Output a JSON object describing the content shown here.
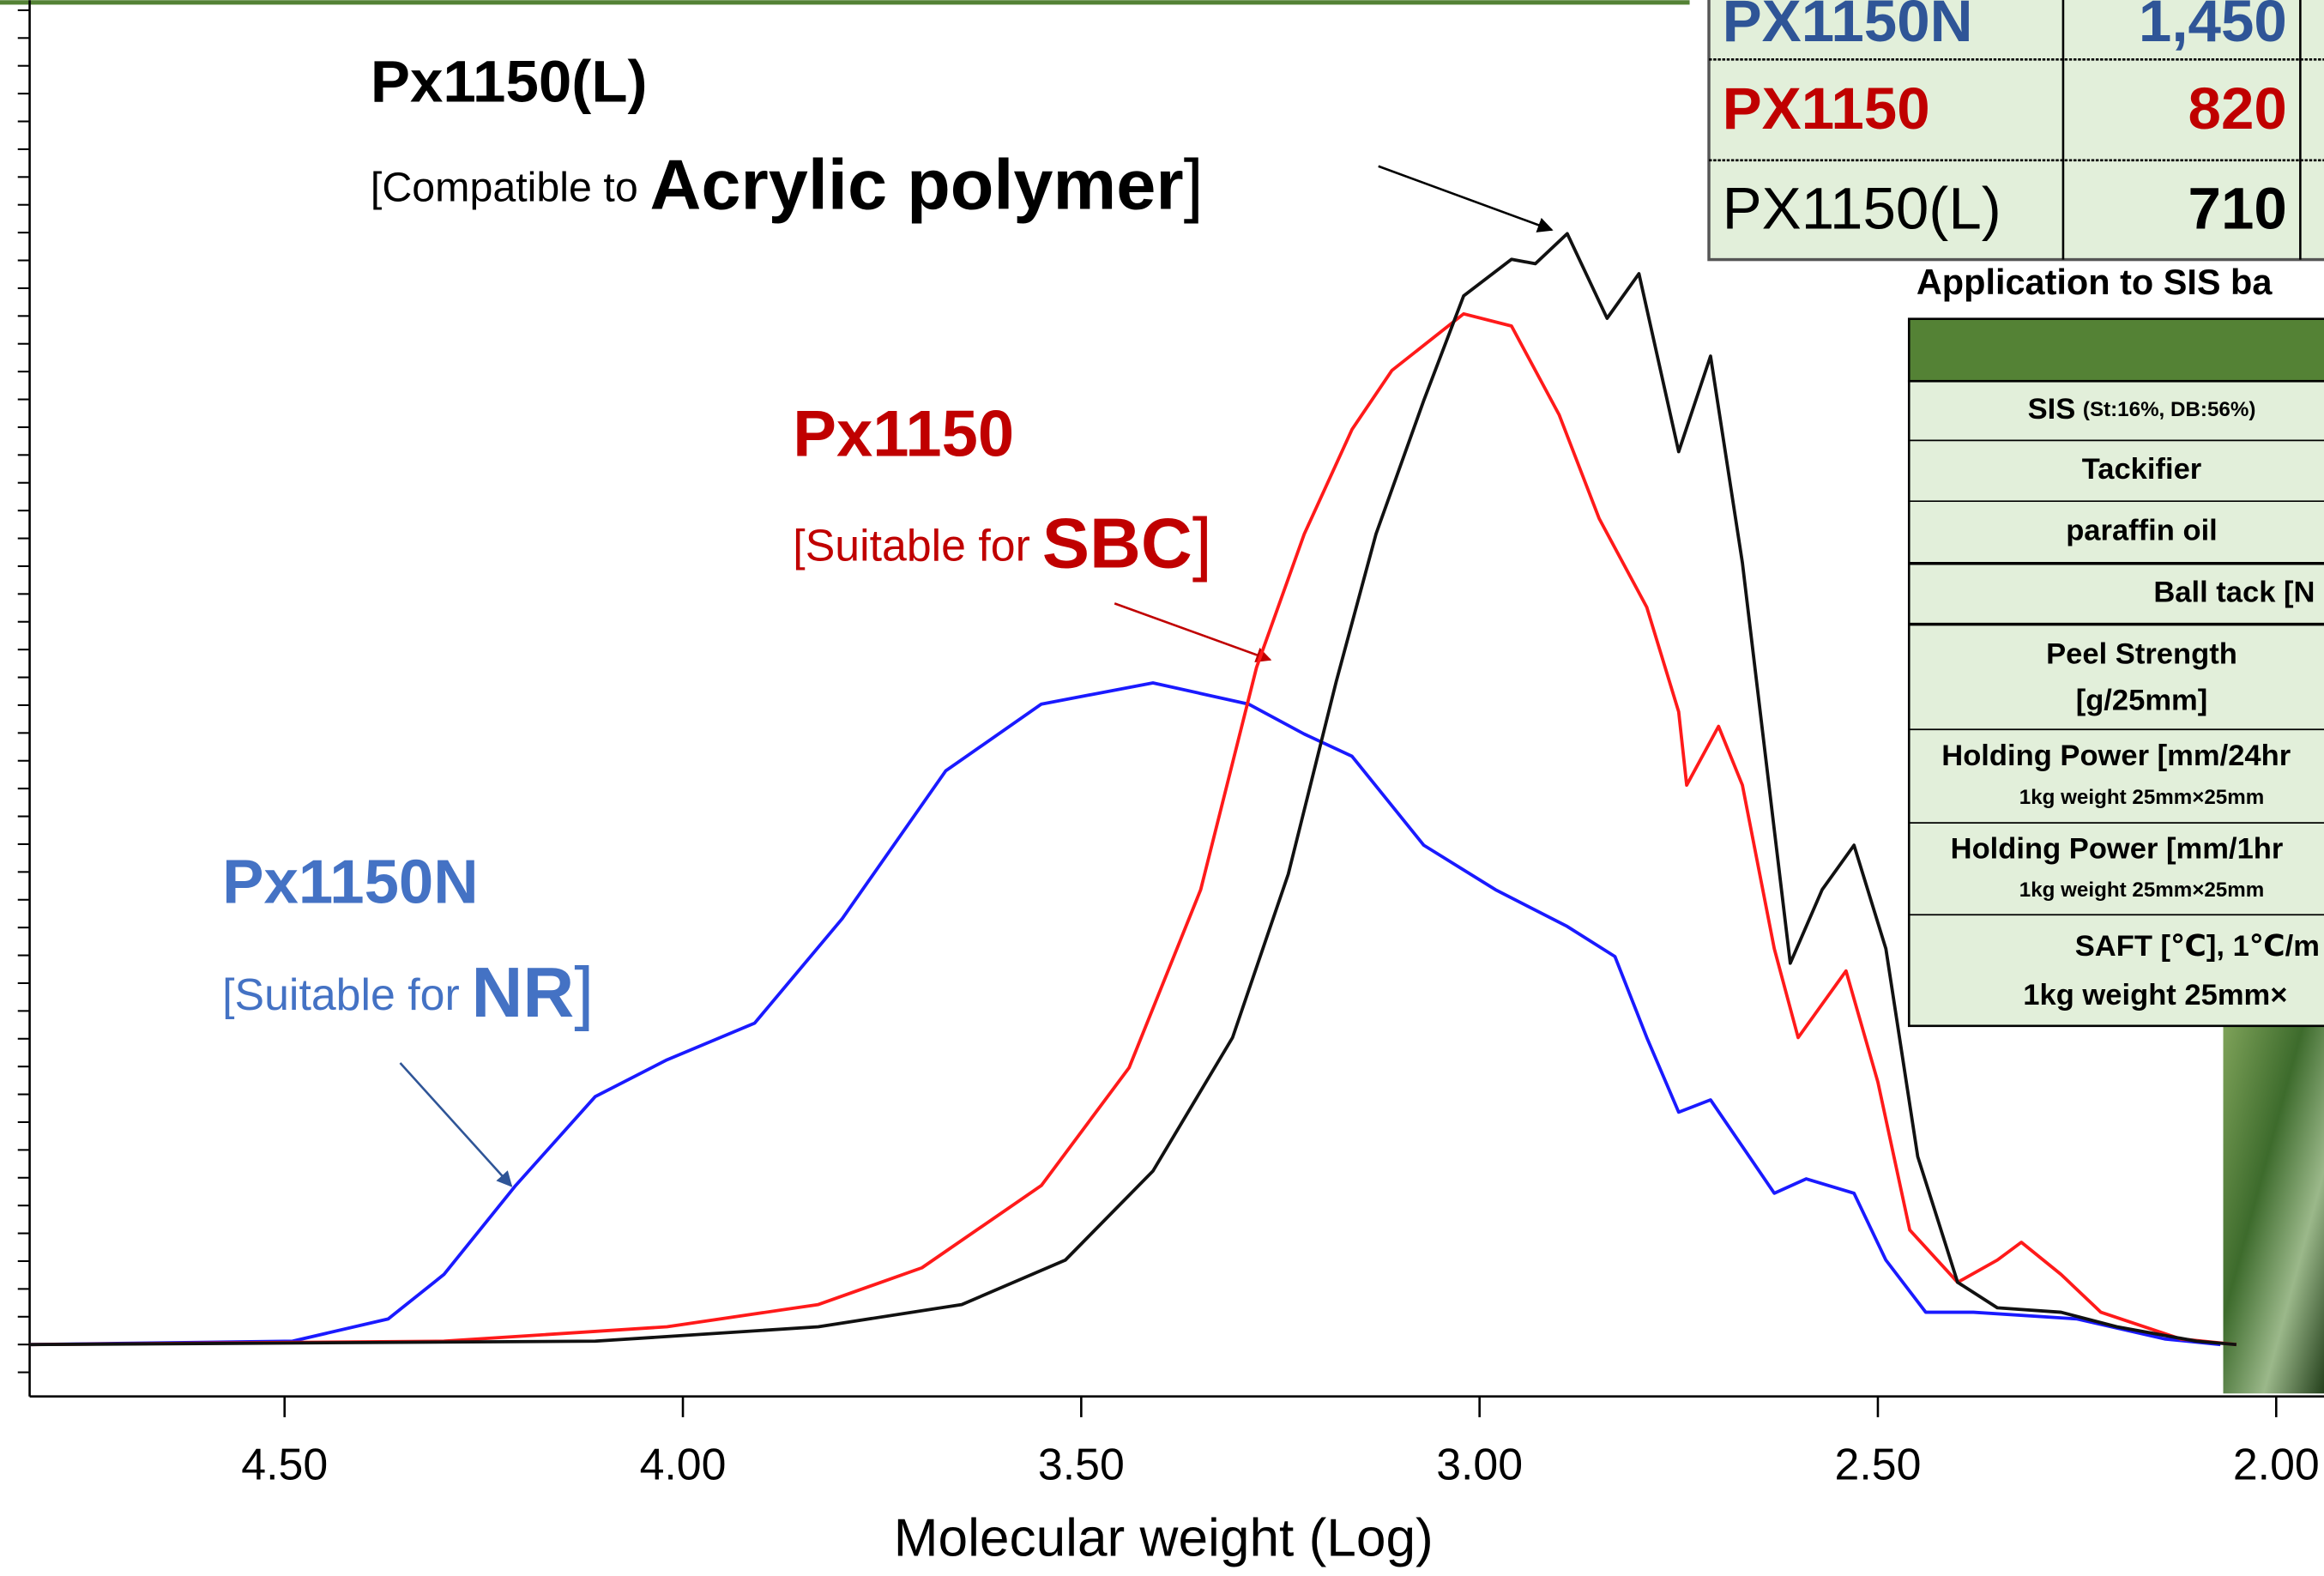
{
  "chart_data": {
    "type": "line",
    "x_label": "Molecular weight (Log)",
    "xlim": [
      4.82,
      1.94
    ],
    "xticks": [
      {
        "value": 4.5,
        "label": "4.50"
      },
      {
        "value": 4.0,
        "label": "4.00"
      },
      {
        "value": 3.5,
        "label": "3.50"
      },
      {
        "value": 3.0,
        "label": "3.00"
      },
      {
        "value": 2.5,
        "label": "2.50"
      },
      {
        "value": 2.0,
        "label": "2.00"
      }
    ],
    "ylim": [
      -4.67,
      120.9
    ],
    "yticks": [
      -2.5,
      0,
      2.5,
      5,
      7.5,
      10,
      12.5,
      15,
      17.5,
      20,
      22.5,
      25,
      27.5,
      30,
      32.5,
      35,
      37.5,
      40,
      42.5,
      45,
      47.5,
      50,
      52.5,
      55,
      57.5,
      60,
      62.5,
      65,
      67.5,
      70,
      72.5,
      75,
      77.5,
      80,
      82.5,
      85,
      87.5,
      90,
      92.5,
      95,
      97.5,
      100,
      102.5,
      105,
      107.5,
      110,
      112.5,
      115,
      117.5,
      120
    ],
    "series": [
      {
        "name": "Px1150N",
        "color": "#1a1aff",
        "x": [
          4.82,
          4.49,
          4.37,
          4.3,
          4.21,
          4.11,
          4.02,
          3.91,
          3.8,
          3.67,
          3.55,
          3.41,
          3.29,
          3.22,
          3.16,
          3.07,
          2.98,
          2.89,
          2.83,
          2.79,
          2.75,
          2.71,
          2.63,
          2.59,
          2.53,
          2.49,
          2.44,
          2.38,
          2.25,
          2.14,
          2.07
        ],
        "values": [
          0,
          0.3,
          2.3,
          6.3,
          14.3,
          22.3,
          25.6,
          28.9,
          38.3,
          51.6,
          57.6,
          59.5,
          57.6,
          54.9,
          52.9,
          44.9,
          40.9,
          37.6,
          34.9,
          27.6,
          20.9,
          22,
          13.6,
          14.9,
          13.6,
          7.6,
          2.9,
          2.9,
          2.3,
          0.5,
          0
        ]
      },
      {
        "name": "Px1150",
        "color": "#ff1a1a",
        "x": [
          4.82,
          4.3,
          4.02,
          3.83,
          3.7,
          3.55,
          3.44,
          3.35,
          3.28,
          3.22,
          3.16,
          3.11,
          3.02,
          2.96,
          2.9,
          2.85,
          2.79,
          2.75,
          2.74,
          2.7,
          2.67,
          2.63,
          2.6,
          2.54,
          2.5,
          2.46,
          2.4,
          2.35,
          2.32,
          2.27,
          2.22,
          2.12,
          2.05
        ],
        "values": [
          0,
          0.3,
          1.6,
          3.6,
          6.9,
          14.3,
          24.9,
          40.9,
          60.9,
          72.9,
          82.3,
          87.6,
          92.7,
          91.6,
          83.6,
          74.3,
          66.3,
          56.9,
          50.3,
          55.6,
          50.3,
          35.6,
          27.6,
          33.6,
          23.6,
          10.3,
          5.6,
          7.6,
          9.2,
          6.3,
          2.9,
          0.5,
          0
        ]
      },
      {
        "name": "Px1150(L)",
        "color": "#111111",
        "x": [
          4.82,
          4.11,
          3.83,
          3.65,
          3.52,
          3.41,
          3.31,
          3.24,
          3.18,
          3.13,
          3.07,
          3.02,
          2.96,
          2.93,
          2.89,
          2.84,
          2.8,
          2.75,
          2.71,
          2.67,
          2.63,
          2.61,
          2.57,
          2.53,
          2.49,
          2.45,
          2.4,
          2.35,
          2.27,
          2.2,
          2.1,
          2.05
        ],
        "values": [
          0,
          0.3,
          1.6,
          3.6,
          7.6,
          15.6,
          27.6,
          42.3,
          59.6,
          72.9,
          84.9,
          94.3,
          97.6,
          97.2,
          99.9,
          92.3,
          96.3,
          80.3,
          88.9,
          70.3,
          46.3,
          34.3,
          40.9,
          44.9,
          35.6,
          16.9,
          5.6,
          3.3,
          2.9,
          1.6,
          0.3,
          0
        ]
      }
    ],
    "annotations": [
      {
        "title": "Px1150(L)",
        "note": "[Compatible to",
        "emphasis": "Acrylic polymer",
        "close": "]",
        "color": "#000000"
      },
      {
        "title": "Px1150",
        "note": "[Suitable for",
        "emphasis": "SBC",
        "close": "]",
        "color": "#c00000"
      },
      {
        "title": "Px1150N",
        "note": "[Suitable for",
        "emphasis": "NR",
        "close": "]",
        "color": "#4472c4"
      }
    ]
  },
  "inset_table": {
    "rows": [
      {
        "name": "PX1150N",
        "value": "1,450",
        "color": "#2f5597"
      },
      {
        "name": "PX1150",
        "value": "820",
        "color": "#c00000"
      },
      {
        "name": "PX1150(L)",
        "value": "710",
        "color": "#000000"
      }
    ]
  },
  "sis_table": {
    "caption": "Application to SIS ba",
    "rows": [
      [
        "SIS",
        "(St:16%, DB:56%)"
      ],
      [
        "Tackifier"
      ],
      [
        "paraffin oil"
      ],
      [
        "Ball tack [N"
      ],
      [
        "Peel Strength",
        "[g/25mm]"
      ],
      [
        "Holding Power [mm/24hr",
        "1kg weight 25mm×25mm"
      ],
      [
        "Holding Power [mm/1hr",
        "1kg weight 25mm×25mm"
      ],
      [
        "SAFT [℃], 1℃/m",
        "1kg weight 25mm×"
      ]
    ]
  }
}
